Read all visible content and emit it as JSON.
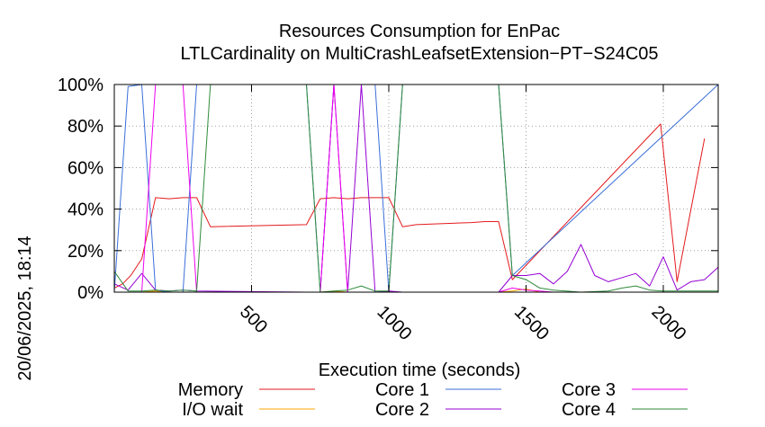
{
  "chart_data": {
    "type": "line",
    "title_lines": [
      "Resources Consumption for EnPac",
      "LTLCardinality on MultiCrashLeafsetExtension−PT−S24C05"
    ],
    "xlabel": "Execution time (seconds)",
    "ylabel": "",
    "side_label": "20/06/2025, 18:14",
    "xlim": [
      0,
      2200
    ],
    "ylim": [
      0,
      100
    ],
    "xticks": [
      500,
      1000,
      1500,
      2000
    ],
    "yticks": [
      0,
      20,
      40,
      60,
      80,
      100
    ],
    "ytick_labels": [
      "0%",
      "20%",
      "40%",
      "60%",
      "80%",
      "100%"
    ],
    "grid": true,
    "legend_position": "bottom",
    "series": [
      {
        "name": "Memory",
        "color": "#e41a1c",
        "x": [
          0,
          30,
          60,
          100,
          150,
          200,
          250,
          300,
          350,
          700,
          750,
          800,
          850,
          900,
          950,
          1000,
          1050,
          1100,
          1300,
          1350,
          1400,
          1450,
          1990,
          2050,
          2150
        ],
        "y": [
          2,
          4,
          8,
          16,
          45.5,
          45,
          45.5,
          45.5,
          31.5,
          32.5,
          45,
          45.5,
          45,
          45.5,
          45.5,
          45.5,
          31.5,
          32.5,
          33.5,
          34,
          34,
          6,
          81,
          5,
          74
        ]
      },
      {
        "name": "I/O wait",
        "color": "#ffa500",
        "x": [
          0,
          100,
          150,
          200,
          700,
          750,
          800,
          850,
          900,
          1000,
          1050,
          1400,
          1450,
          1500,
          1550,
          1600,
          2200
        ],
        "y": [
          0,
          0,
          0.5,
          0,
          0,
          0,
          0.5,
          0,
          0,
          0,
          0,
          0,
          0.5,
          1.5,
          0,
          0,
          0
        ]
      },
      {
        "name": "Core 1",
        "color": "#3b6fd9",
        "x": [
          0,
          50,
          100,
          150,
          200,
          250,
          300,
          350,
          400,
          700,
          750,
          800,
          850,
          900,
          950,
          1000,
          1050,
          1400,
          1450,
          2200
        ],
        "y": [
          0,
          99,
          100,
          1,
          0,
          0,
          100,
          100,
          100,
          100,
          0,
          100,
          100,
          100,
          100,
          0,
          100,
          100,
          8,
          100
        ]
      },
      {
        "name": "Core 2",
        "color": "#9400d3",
        "x": [
          0,
          50,
          100,
          150,
          200,
          250,
          300,
          700,
          750,
          800,
          850,
          900,
          950,
          1000,
          1050,
          1400,
          1450,
          1500,
          1550,
          1600,
          1650,
          1700,
          1750,
          1800,
          1850,
          1900,
          1950,
          2000,
          2050,
          2100,
          2150,
          2200
        ],
        "y": [
          4,
          1,
          9,
          1,
          0.5,
          1,
          0.5,
          0,
          0,
          100,
          0,
          100,
          0,
          0.5,
          0,
          0,
          8,
          8,
          9,
          4,
          10,
          23,
          8,
          5,
          7,
          9,
          3,
          17,
          1,
          5,
          6,
          12
        ]
      },
      {
        "name": "Core 3",
        "color": "#ee00ee",
        "x": [
          0,
          100,
          150,
          200,
          250,
          300,
          350,
          700,
          750,
          800,
          850,
          900,
          950,
          1000,
          1050,
          1400,
          1450,
          1500,
          1550,
          1600,
          2200
        ],
        "y": [
          0,
          0,
          100,
          100,
          100,
          0,
          0,
          0,
          0,
          100,
          0,
          0,
          0,
          0,
          0,
          0,
          2,
          1,
          0.5,
          0,
          0
        ]
      },
      {
        "name": "Core 4",
        "color": "#2e8b3a",
        "x": [
          0,
          50,
          100,
          150,
          200,
          250,
          300,
          350,
          700,
          750,
          800,
          850,
          900,
          950,
          1000,
          1050,
          1400,
          1450,
          1500,
          1550,
          1600,
          1700,
          1800,
          1850,
          1900,
          1950,
          2000,
          2050,
          2100,
          2150,
          2200
        ],
        "y": [
          10,
          0.5,
          0.5,
          1,
          0.5,
          1,
          0.5,
          100,
          100,
          0,
          0.5,
          1,
          3,
          0.5,
          0.5,
          100,
          100,
          8,
          6,
          2,
          1,
          0,
          0.5,
          2,
          3,
          1,
          0.5,
          0.5,
          0.5,
          0.5,
          0.5
        ]
      }
    ]
  }
}
